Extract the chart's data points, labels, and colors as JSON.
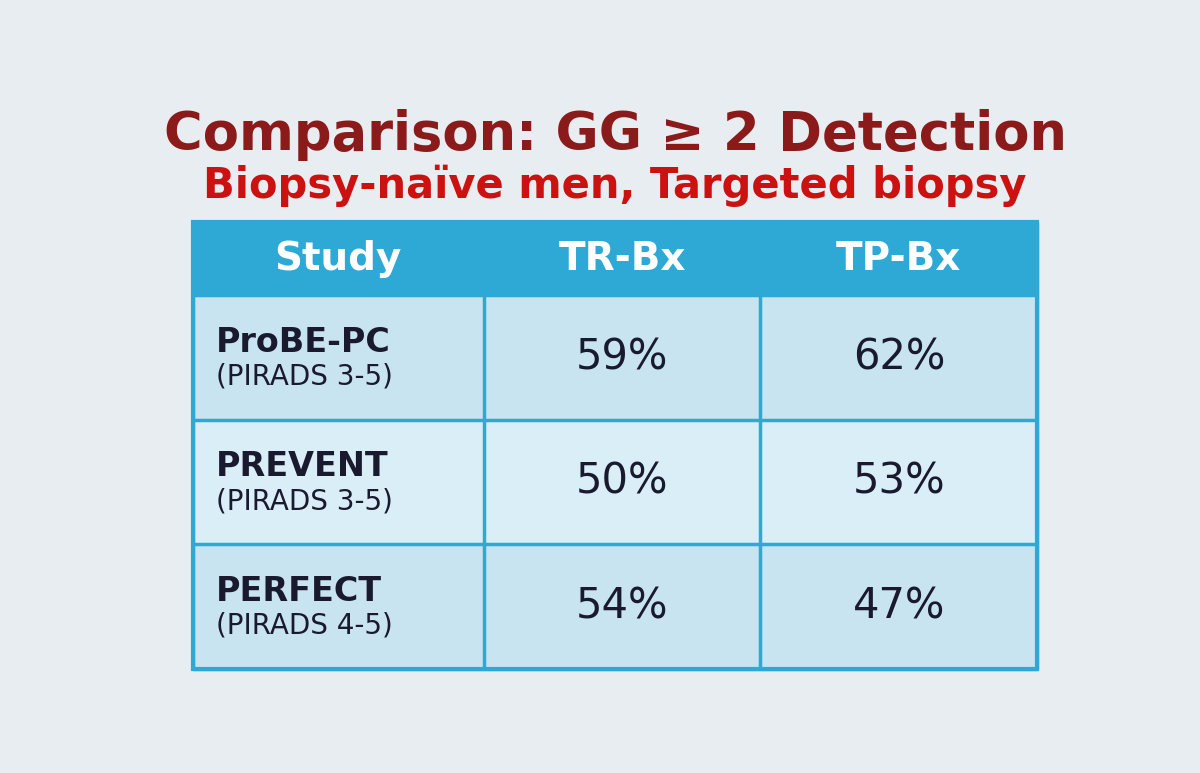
{
  "title": "Comparison: GG ≥ 2 Detection",
  "subtitle": "Biopsy-naïve men, Targeted biopsy",
  "col_headers": [
    "Study",
    "TR-Bx",
    "TP-Bx"
  ],
  "rows": [
    {
      "study_bold": "ProBE-PC",
      "study_sub": "(PIRADS 3-5)",
      "trbx": "59%",
      "tpbx": "62%"
    },
    {
      "study_bold": "PREVENT",
      "study_sub": "(PIRADS 3-5)",
      "trbx": "50%",
      "tpbx": "53%"
    },
    {
      "study_bold": "PERFECT",
      "study_sub": "(PIRADS 4-5)",
      "trbx": "54%",
      "tpbx": "47%"
    }
  ],
  "title_color": "#8b1a1a",
  "subtitle_color": "#cc1111",
  "header_bg": "#2ea8d5",
  "header_text": "#ffffff",
  "row_bg_even": "#c8e4f0",
  "row_bg_odd": "#daeef7",
  "row_text_dark": "#1a1a2e",
  "bg_color": "#e8edf2",
  "table_border_color": "#2ea8d5",
  "title_fontsize": 38,
  "subtitle_fontsize": 30,
  "header_fontsize": 28,
  "study_bold_fontsize": 24,
  "study_sub_fontsize": 20,
  "value_fontsize": 30
}
